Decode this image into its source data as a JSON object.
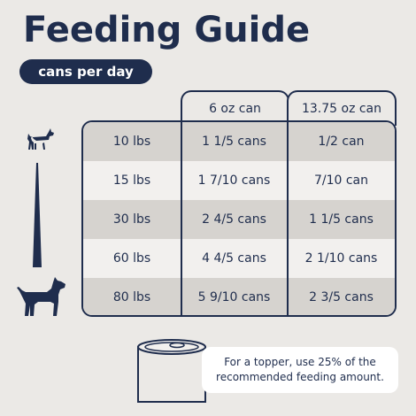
{
  "title": "Feeding Guide",
  "subtitle": "cans per day",
  "columns": [
    "6 oz can",
    "13.75 oz can"
  ],
  "rows": [
    {
      "weight": "10 lbs",
      "small_can": "1 1/5 cans",
      "large_can": "1/2 can"
    },
    {
      "weight": "15 lbs",
      "small_can": "1 7/10 cans",
      "large_can": "7/10 can"
    },
    {
      "weight": "30 lbs",
      "small_can": "2 4/5 cans",
      "large_can": "1 1/5 cans"
    },
    {
      "weight": "60 lbs",
      "small_can": "4 4/5 cans",
      "large_can": "2 1/10 cans"
    },
    {
      "weight": "80 lbs",
      "small_can": "5 9/10 cans",
      "large_can": "2 3/5 cans"
    }
  ],
  "note": {
    "line1": "For a topper, use 25% of the",
    "line2": "recommended feeding amount."
  },
  "icons": {
    "small_dog": "small-dog-icon",
    "large_dog": "large-dog-icon",
    "scale": "size-wedge-icon",
    "can": "food-can-icon"
  },
  "colors": {
    "navy": "#1f2d4d",
    "background": "#ebe9e6",
    "row_shade": "#d6d3cf",
    "row_light": "#f2f0ee"
  }
}
